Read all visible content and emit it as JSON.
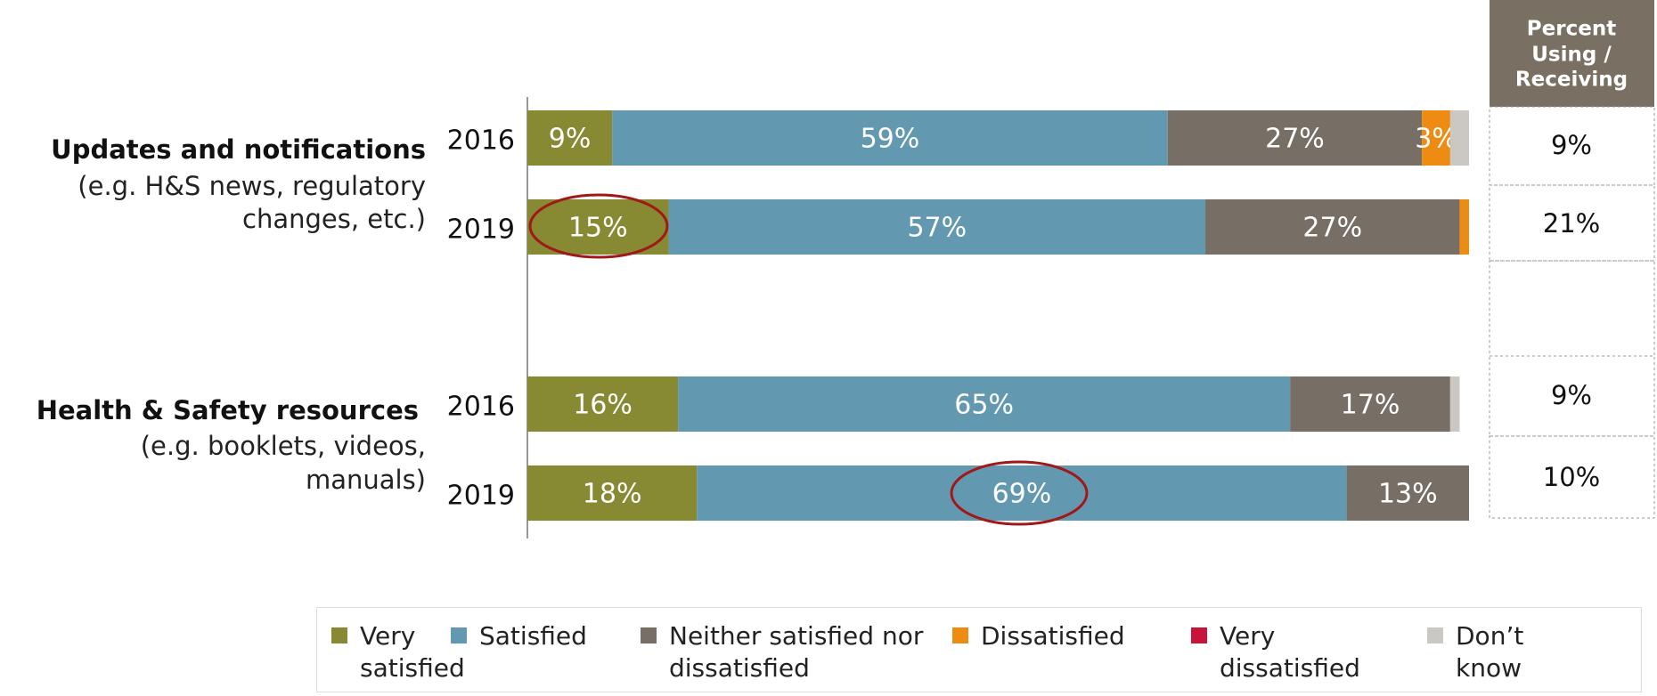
{
  "chart_data": {
    "type": "stacked-bar-horizontal",
    "groups": [
      {
        "name": "Updates and notifications",
        "note": [
          "(e.g. H&S news, regulatory",
          "changes, etc.)"
        ]
      },
      {
        "name": "Health & Safety resources",
        "note": [
          "(e.g. booklets, videos,",
          "manuals)"
        ]
      }
    ],
    "categories": [
      "2016",
      "2019",
      "2016",
      "2019"
    ],
    "xlim": [
      0,
      100
    ],
    "series": [
      {
        "name": "Very satisfied",
        "color": "#878a32",
        "values": [
          9,
          15,
          16,
          18
        ],
        "value_labels": [
          "9%",
          "15%",
          "16%",
          "18%"
        ]
      },
      {
        "name": "Satisfied",
        "color": "#6399b0",
        "values": [
          59,
          57,
          65,
          69
        ],
        "value_labels": [
          "59%",
          "57%",
          "65%",
          "69%"
        ]
      },
      {
        "name": "Neither satisfied nor dissatisfied",
        "color": "#776f65",
        "values": [
          27,
          27,
          17,
          13
        ],
        "value_labels": [
          "27%",
          "27%",
          "17%",
          "13%"
        ]
      },
      {
        "name": "Dissatisfied",
        "color": "#ee8b12",
        "values": [
          3,
          1,
          0,
          0
        ],
        "value_labels": [
          "3%",
          null,
          null,
          null
        ]
      },
      {
        "name": "Very dissatisfied",
        "color": "#c8143c",
        "values": [
          0,
          0,
          0,
          0
        ],
        "value_labels": [
          null,
          null,
          null,
          null
        ]
      },
      {
        "name": "Don’t know",
        "color": "#cbc7c3",
        "values": [
          2,
          0,
          1,
          0
        ],
        "value_labels": [
          null,
          null,
          null,
          null
        ]
      }
    ],
    "side_table": {
      "header": [
        "Percent",
        "Using /",
        "Receiving"
      ],
      "values": [
        "9%",
        "21%",
        "9%",
        "10%"
      ]
    }
  }
}
